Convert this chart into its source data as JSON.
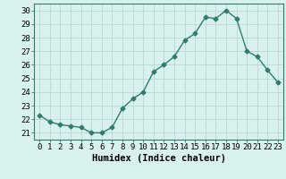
{
  "x": [
    0,
    1,
    2,
    3,
    4,
    5,
    6,
    7,
    8,
    9,
    10,
    11,
    12,
    13,
    14,
    15,
    16,
    17,
    18,
    19,
    20,
    21,
    22,
    23
  ],
  "y": [
    22.3,
    21.8,
    21.6,
    21.5,
    21.4,
    21.0,
    21.0,
    21.4,
    22.8,
    23.5,
    24.0,
    25.5,
    26.0,
    26.6,
    27.8,
    28.3,
    29.5,
    29.4,
    30.0,
    29.4,
    27.0,
    26.6,
    25.6,
    24.7
  ],
  "line_color": "#2e7d6e",
  "marker": "D",
  "marker_size": 2.5,
  "bg_color": "#d8f0ee",
  "grid_color": "#b8d8d4",
  "xlabel": "Humidex (Indice chaleur)",
  "ylim": [
    20.5,
    30.5
  ],
  "xlim": [
    -0.5,
    23.5
  ],
  "yticks": [
    21,
    22,
    23,
    24,
    25,
    26,
    27,
    28,
    29,
    30
  ],
  "xticks": [
    0,
    1,
    2,
    3,
    4,
    5,
    6,
    7,
    8,
    9,
    10,
    11,
    12,
    13,
    14,
    15,
    16,
    17,
    18,
    19,
    20,
    21,
    22,
    23
  ],
  "tick_fontsize": 6.5,
  "label_fontsize": 7.5
}
